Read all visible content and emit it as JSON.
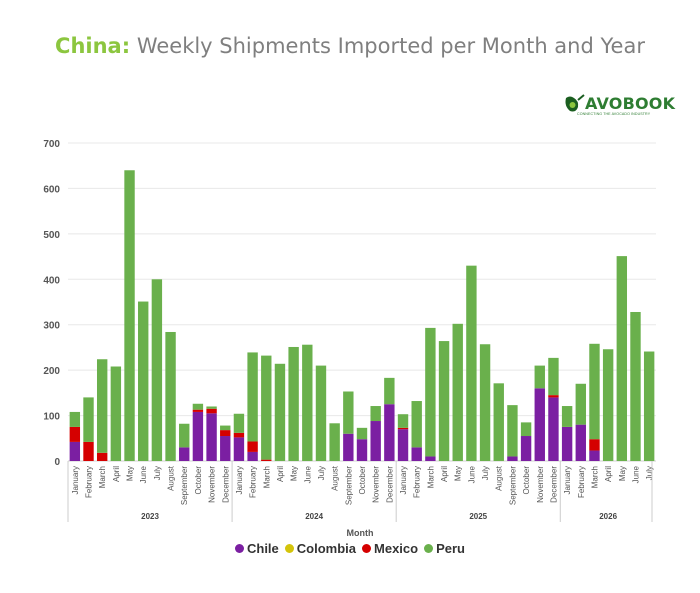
{
  "header": {
    "title_highlight": "China:",
    "title_rest": " Weekly Shipments Imported per Month and Year"
  },
  "logo": {
    "text": "AVOBOOK",
    "tagline": "CONNECTING THE AVOCADO INDUSTRY"
  },
  "colors": {
    "Chile": "#7b1fa2",
    "Colombia": "#d4c40a",
    "Mexico": "#d50000",
    "Peru": "#6ab04c",
    "title_accent": "#8cc63f"
  },
  "chart_data": {
    "type": "bar",
    "stacked": true,
    "xlabel": "Month",
    "ylabel": "",
    "ylim": [
      0,
      700
    ],
    "yticks": [
      0,
      100,
      200,
      300,
      400,
      500,
      600,
      700
    ],
    "grid": true,
    "legend_position": "bottom",
    "groups": [
      {
        "year": "2023",
        "months": [
          "January",
          "February",
          "March",
          "April",
          "May",
          "June",
          "July",
          "August",
          "September",
          "October",
          "November",
          "December"
        ]
      },
      {
        "year": "2024",
        "months": [
          "January",
          "February",
          "March",
          "April",
          "May",
          "June",
          "July",
          "August",
          "September",
          "October",
          "November",
          "December"
        ]
      },
      {
        "year": "2025",
        "months": [
          "January",
          "February",
          "March",
          "April",
          "May",
          "June",
          "July",
          "August",
          "September",
          "October",
          "November",
          "December"
        ]
      },
      {
        "year": "2026",
        "months": [
          "January",
          "February",
          "March",
          "April",
          "May",
          "June",
          "July"
        ]
      }
    ],
    "series": [
      {
        "name": "Chile",
        "values": [
          42,
          0,
          0,
          0,
          0,
          0,
          0,
          0,
          30,
          108,
          105,
          55,
          52,
          20,
          0,
          0,
          0,
          0,
          0,
          0,
          60,
          48,
          88,
          125,
          70,
          30,
          10,
          0,
          0,
          0,
          0,
          0,
          10,
          55,
          160,
          140,
          75,
          80,
          23,
          0,
          0,
          0,
          0
        ]
      },
      {
        "name": "Colombia",
        "values": [
          0,
          0,
          0,
          0,
          0,
          0,
          0,
          0,
          0,
          0,
          0,
          0,
          0,
          0,
          0,
          0,
          0,
          0,
          0,
          0,
          0,
          0,
          0,
          0,
          0,
          0,
          0,
          0,
          0,
          0,
          0,
          0,
          0,
          0,
          0,
          0,
          0,
          0,
          0,
          0,
          0,
          0,
          0
        ]
      },
      {
        "name": "Mexico",
        "values": [
          33,
          42,
          18,
          0,
          0,
          0,
          0,
          0,
          0,
          5,
          10,
          13,
          10,
          23,
          3,
          0,
          0,
          0,
          0,
          0,
          0,
          0,
          0,
          0,
          3,
          0,
          0,
          0,
          0,
          0,
          0,
          0,
          0,
          0,
          0,
          5,
          0,
          0,
          25,
          0,
          0,
          0,
          0
        ]
      },
      {
        "name": "Peru",
        "values": [
          33,
          98,
          206,
          208,
          640,
          351,
          400,
          284,
          52,
          13,
          5,
          10,
          42,
          196,
          229,
          214,
          251,
          256,
          210,
          83,
          93,
          25,
          33,
          58,
          30,
          102,
          283,
          264,
          302,
          430,
          257,
          171,
          113,
          30,
          50,
          82,
          46,
          90,
          210,
          246,
          451,
          328,
          241
        ]
      }
    ]
  },
  "legend": [
    {
      "label": "Chile",
      "color": "#7b1fa2"
    },
    {
      "label": "Colombia",
      "color": "#d4c40a"
    },
    {
      "label": "Mexico",
      "color": "#d50000"
    },
    {
      "label": "Peru",
      "color": "#6ab04c"
    }
  ]
}
